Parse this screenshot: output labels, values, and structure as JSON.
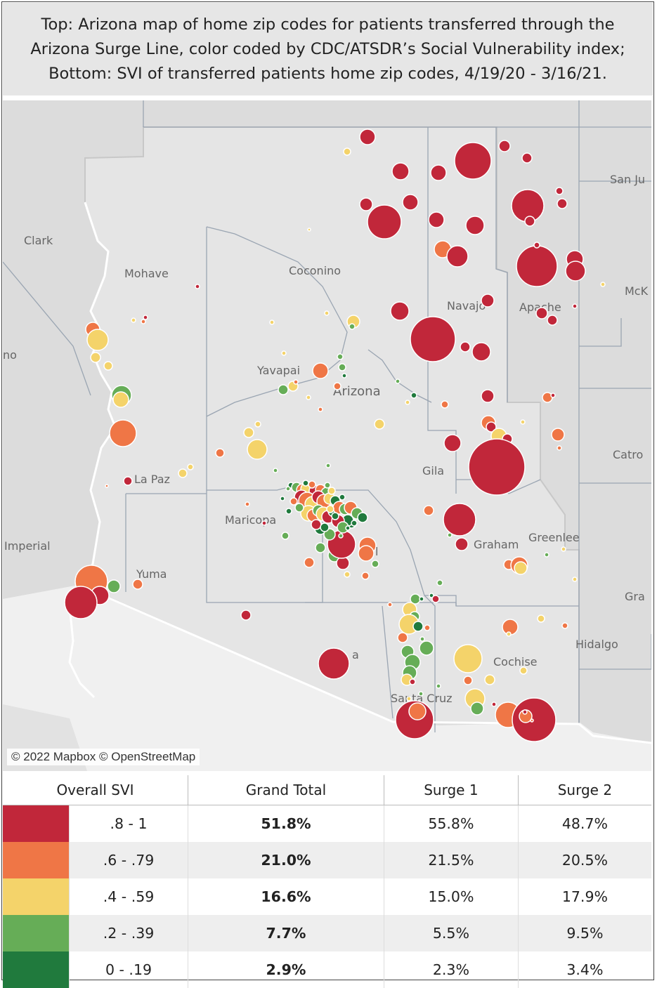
{
  "title": {
    "line1": "Top: Arizona map of home zip codes for patients transferred through the",
    "line2": "Arizona Surge Line, color coded by CDC/ATSDR’s Social Vulnerability index;",
    "line3": "Bottom: SVI of transferred patients home zip codes, 4/19/20 - 3/16/21."
  },
  "map": {
    "attribution": "© 2022 Mapbox © OpenStreetMap",
    "labels": {
      "clark": "Clark",
      "mohave": "Mohave",
      "coconino": "Coconino",
      "navajo": "Navajo",
      "apache": "Apache",
      "san_juan": "San Ju",
      "mckinley": "McK",
      "yavapai": "Yavapai",
      "arizona": "Arizona",
      "gila": "Gila",
      "catron": "Catro",
      "la_paz": "La Paz",
      "maricopa": "Maricopa",
      "imperial": "Imperial",
      "yuma": "Yuma",
      "graham": "Graham",
      "greenlee": "Greenlee",
      "grant": "Gra",
      "hidalgo": "Hidalgo",
      "cochise": "Cochise",
      "santa_cruz": "Santa Cruz",
      "pima": "a",
      "pinal": "l",
      "west_edge": "no"
    },
    "colors": {
      "svi_08_1": "#c1273a",
      "svi_06_079": "#ef7646",
      "svi_04_059": "#f4d36a",
      "svi_02_039": "#66ad57",
      "svi_0_019": "#207a3d"
    }
  },
  "table": {
    "headers": [
      "Overall SVI",
      "Grand Total",
      "Surge 1",
      "Surge 2"
    ],
    "rows": [
      {
        "color": "#c1273a",
        "range": ".8 - 1",
        "grand_total": "51.8%",
        "surge1": "55.8%",
        "surge2": "48.7%"
      },
      {
        "color": "#ef7646",
        "range": ".6 - .79",
        "grand_total": "21.0%",
        "surge1": "21.5%",
        "surge2": "20.5%"
      },
      {
        "color": "#f4d36a",
        "range": ".4 - .59",
        "grand_total": "16.6%",
        "surge1": "15.0%",
        "surge2": "17.9%"
      },
      {
        "color": "#66ad57",
        "range": ".2 - .39",
        "grand_total": "7.7%",
        "surge1": "5.5%",
        "surge2": "9.5%"
      },
      {
        "color": "#207a3d",
        "range": "0 - .19",
        "grand_total": "2.9%",
        "surge1": "2.3%",
        "surge2": "3.4%"
      }
    ]
  }
}
